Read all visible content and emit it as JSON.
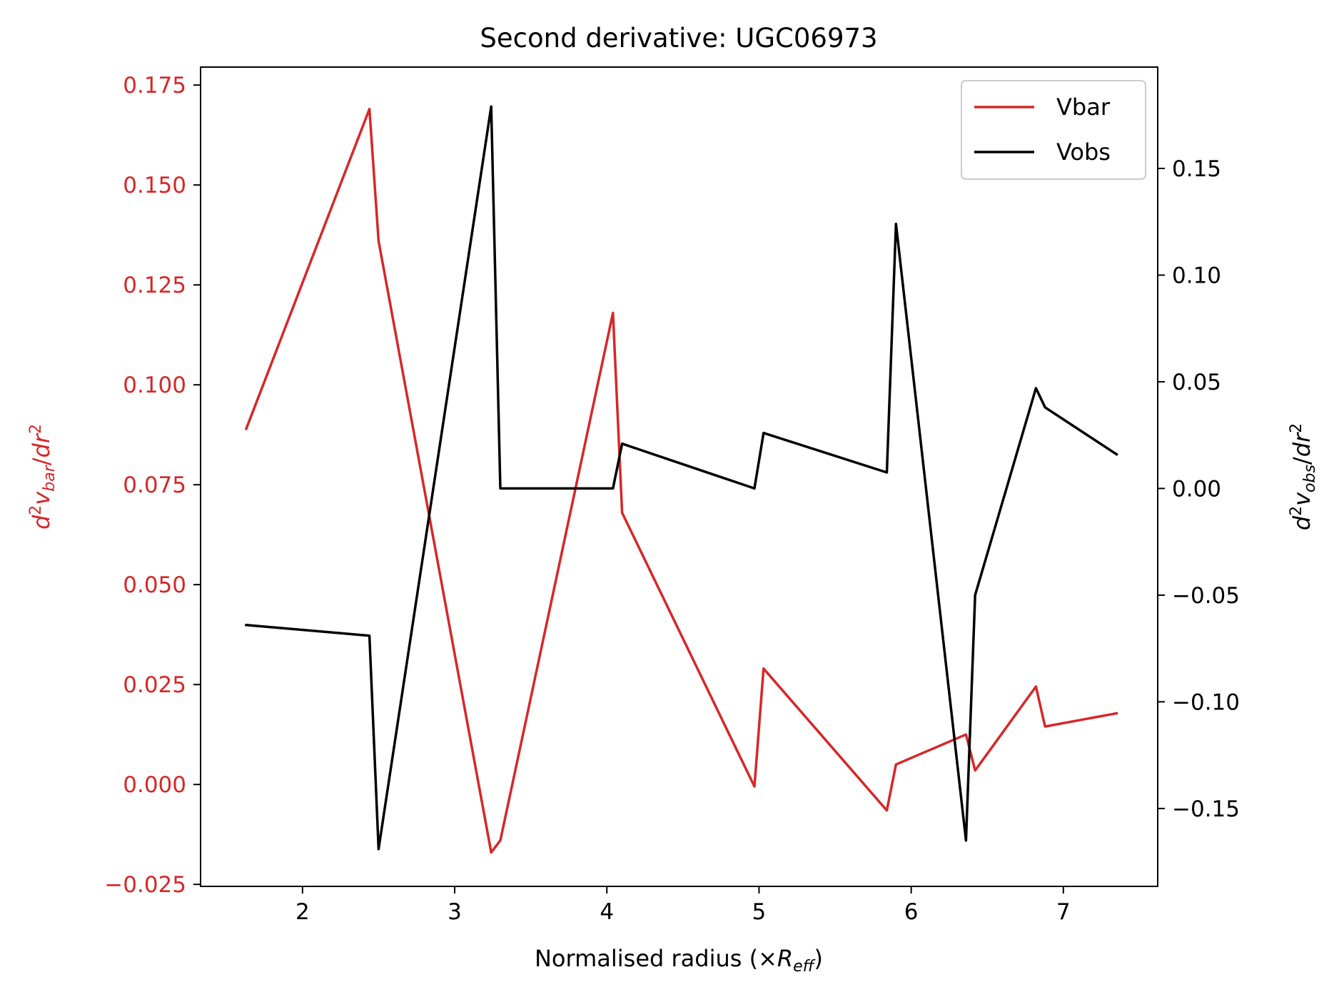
{
  "chart_data": {
    "type": "line",
    "title": "Second derivative: UGC06973",
    "xlabel_main": "Normalised radius (×",
    "xlabel_sym": "R",
    "xlabel_sub": "eff",
    "xlabel_close": ")",
    "ylabel_left": {
      "d": "d",
      "sup1": "2",
      "v": "v",
      "sub": "bar",
      "slash": "/",
      "dr": "dr",
      "sup2": "2"
    },
    "ylabel_right": {
      "d": "d",
      "sup1": "2",
      "v": "v",
      "sub": "obs",
      "slash": "/",
      "dr": "dr",
      "sup2": "2"
    },
    "xlim": [
      1.33,
      7.62
    ],
    "ylim_left": [
      -0.0255,
      0.1795
    ],
    "ylim_right": [
      -0.1865,
      0.1975
    ],
    "x_ticks": [
      2,
      3,
      4,
      5,
      6,
      7
    ],
    "x_tick_labels": [
      "2",
      "3",
      "4",
      "5",
      "6",
      "7"
    ],
    "y_left_ticks": [
      -0.025,
      0.0,
      0.025,
      0.05,
      0.075,
      0.1,
      0.125,
      0.15,
      0.175
    ],
    "y_left_tick_labels": [
      "−0.025",
      "0.000",
      "0.025",
      "0.050",
      "0.075",
      "0.100",
      "0.125",
      "0.150",
      "0.175"
    ],
    "y_right_ticks": [
      -0.15,
      -0.1,
      -0.05,
      0.0,
      0.05,
      0.1,
      0.15
    ],
    "y_right_tick_labels": [
      "−0.15",
      "−0.10",
      "−0.05",
      "0.00",
      "0.05",
      "0.10",
      "0.15"
    ],
    "legend_position": "top-right",
    "series": [
      {
        "name": "Vbar",
        "axis": "left",
        "color": "#d62728",
        "x": [
          1.63,
          2.44,
          2.5,
          3.24,
          3.3,
          4.04,
          4.1,
          4.97,
          5.03,
          5.84,
          5.9,
          6.36,
          6.42,
          6.82,
          6.88,
          7.35
        ],
        "y": [
          0.089,
          0.169,
          0.136,
          -0.017,
          -0.014,
          0.118,
          0.068,
          -0.0005,
          0.029,
          -0.0065,
          0.005,
          0.0125,
          0.0035,
          0.0245,
          0.0145,
          0.0178
        ]
      },
      {
        "name": "Vobs",
        "axis": "right",
        "color": "#000000",
        "x": [
          1.63,
          2.44,
          2.5,
          3.24,
          3.3,
          4.04,
          4.1,
          4.97,
          5.03,
          5.84,
          5.9,
          6.36,
          6.42,
          6.82,
          6.88,
          7.35
        ],
        "y": [
          -0.064,
          -0.069,
          -0.169,
          0.179,
          0.0,
          0.0,
          0.021,
          0.0,
          0.026,
          0.0075,
          0.124,
          -0.165,
          -0.05,
          0.047,
          0.038,
          0.016
        ]
      }
    ]
  }
}
